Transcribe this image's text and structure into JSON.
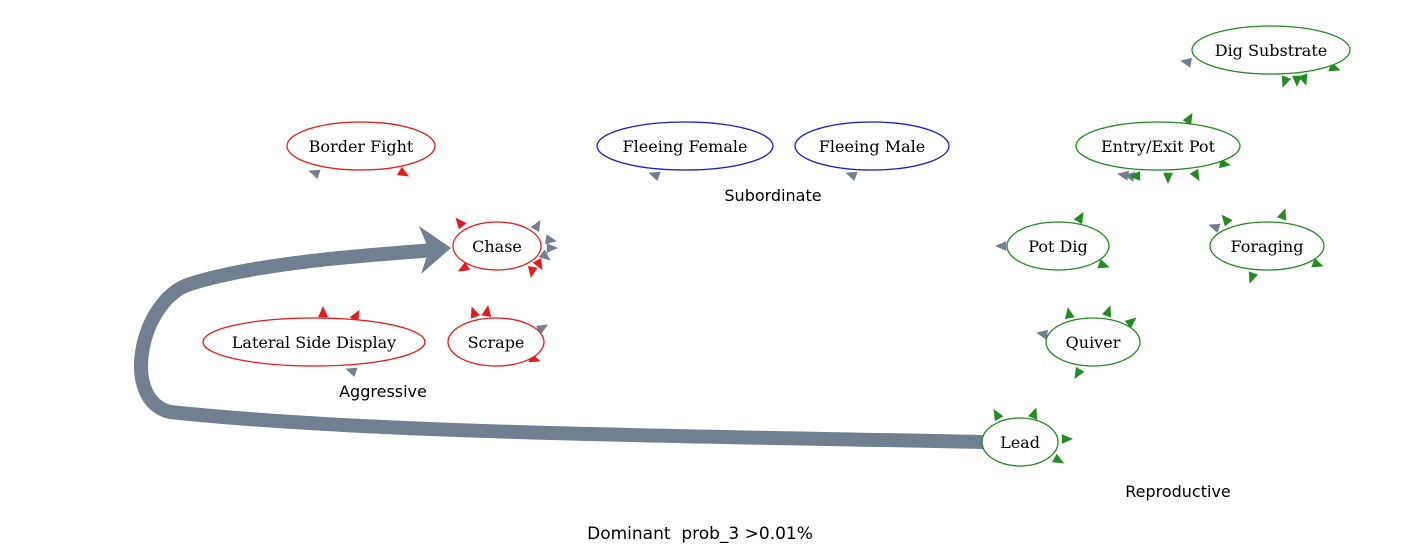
{
  "diagram": {
    "caption": "Dominant  prob_3 >0.01%",
    "colors": {
      "aggressive": "#e41a1c",
      "subordinate": "#1a1acc",
      "reproductive": "#228b22",
      "edge": "#708090"
    },
    "groups": [
      {
        "id": "aggressive",
        "label": "Aggressive"
      },
      {
        "id": "subordinate",
        "label": "Subordinate"
      },
      {
        "id": "reproductive",
        "label": "Reproductive"
      }
    ],
    "nodes": [
      {
        "id": "border-fight",
        "label": "Border Fight",
        "group": "aggressive"
      },
      {
        "id": "chase",
        "label": "Chase",
        "group": "aggressive"
      },
      {
        "id": "lateral-side-display",
        "label": "Lateral Side Display",
        "group": "aggressive"
      },
      {
        "id": "scrape",
        "label": "Scrape",
        "group": "aggressive"
      },
      {
        "id": "fleeing-female",
        "label": "Fleeing Female",
        "group": "subordinate"
      },
      {
        "id": "fleeing-male",
        "label": "Fleeing Male",
        "group": "subordinate"
      },
      {
        "id": "dig-substrate",
        "label": "Dig Substrate",
        "group": "reproductive"
      },
      {
        "id": "entry-exit-pot",
        "label": "Entry/Exit Pot",
        "group": "reproductive"
      },
      {
        "id": "pot-dig",
        "label": "Pot Dig",
        "group": "reproductive"
      },
      {
        "id": "foraging",
        "label": "Foraging",
        "group": "reproductive"
      },
      {
        "id": "quiver",
        "label": "Quiver",
        "group": "reproductive"
      },
      {
        "id": "lead",
        "label": "Lead",
        "group": "reproductive"
      }
    ],
    "edges": [
      {
        "from": "lead",
        "to": "chase",
        "weight": "major"
      }
    ]
  }
}
